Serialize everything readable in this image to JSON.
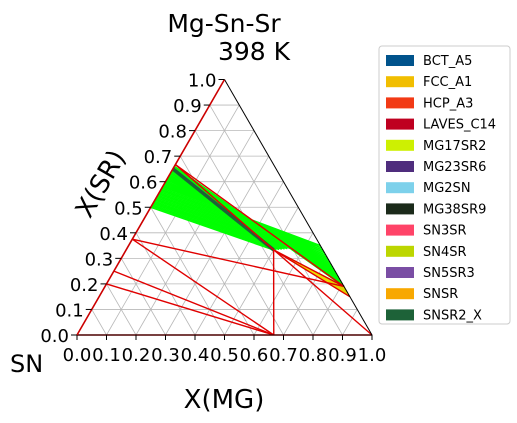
{
  "chart_data": {
    "type": "ternary",
    "title": "Mg-Sn-Sr",
    "subtitle": "398  K",
    "axes": {
      "bottom": {
        "label": "X(MG)",
        "ticks": [
          "0.0",
          "0.1",
          "0.2",
          "0.3",
          "0.4",
          "0.5",
          "0.6",
          "0.7",
          "0.8",
          "0.9",
          "1.0"
        ]
      },
      "left": {
        "label": "X(SR)",
        "ticks": [
          "0.0",
          "0.1",
          "0.2",
          "0.3",
          "0.4",
          "0.5",
          "0.6",
          "0.7",
          "0.8",
          "0.9",
          "1.0"
        ]
      },
      "corner_label": "SN"
    },
    "grid": true,
    "legend": {
      "placement": "right",
      "entries": [
        {
          "name": "BCT_A5",
          "color": "#00538c"
        },
        {
          "name": "FCC_A1",
          "color": "#f1be00"
        },
        {
          "name": "HCP_A3",
          "color": "#f23a15"
        },
        {
          "name": "LAVES_C14",
          "color": "#bf0020"
        },
        {
          "name": "MG17SR2",
          "color": "#cdf002"
        },
        {
          "name": "MG23SR6",
          "color": "#4f2d7d"
        },
        {
          "name": "MG2SN",
          "color": "#7dd1eb"
        },
        {
          "name": "MG38SR9",
          "color": "#1b2a1a"
        },
        {
          "name": "SN3SR",
          "color": "#ff4468"
        },
        {
          "name": "SN4SR",
          "color": "#bcd600"
        },
        {
          "name": "SN5SR3",
          "color": "#7a4ea4"
        },
        {
          "name": "SNSR",
          "color": "#f8a800"
        },
        {
          "name": "SNSR2_X",
          "color": "#1d6238"
        }
      ]
    },
    "tie_line_colors": {
      "red": "#e00000",
      "green": "#00ff00",
      "dark": "#1d6238",
      "olive": "#8a8a00"
    },
    "red_lines": [
      {
        "from": {
          "mg": 0.0,
          "sr": 0.667
        },
        "to": {
          "mg": 1.0,
          "sr": 0.0
        }
      },
      {
        "from": {
          "mg": 0.0,
          "sr": 0.667
        },
        "to": {
          "mg": 0.81,
          "sr": 0.19
        }
      },
      {
        "from": {
          "mg": 0.0,
          "sr": 0.375
        },
        "to": {
          "mg": 0.81,
          "sr": 0.19
        }
      },
      {
        "from": {
          "mg": 0.0,
          "sr": 0.375
        },
        "to": {
          "mg": 0.667,
          "sr": 0.0
        }
      },
      {
        "from": {
          "mg": 0.0,
          "sr": 0.25
        },
        "to": {
          "mg": 0.667,
          "sr": 0.0
        }
      },
      {
        "from": {
          "mg": 0.0,
          "sr": 0.2
        },
        "to": {
          "mg": 0.667,
          "sr": 0.0
        }
      },
      {
        "from": {
          "mg": 0.0,
          "sr": 0.0
        },
        "to": {
          "mg": 0.667,
          "sr": 0.0
        }
      },
      {
        "from": {
          "mg": 0.667,
          "sr": 0.0
        },
        "to": {
          "mg": 0.5,
          "sr": 0.333
        }
      },
      {
        "from": {
          "mg": 0.667,
          "sr": 0.0
        },
        "to": {
          "mg": 1.0,
          "sr": 0.0
        }
      },
      {
        "from": {
          "mg": 0.5,
          "sr": 0.333
        },
        "to": {
          "mg": 0.81,
          "sr": 0.19
        }
      },
      {
        "from": {
          "mg": 0.5,
          "sr": 0.333
        },
        "to": {
          "mg": 0.85,
          "sr": 0.15
        }
      }
    ],
    "green_fan": {
      "from": [
        {
          "mg": 0.0,
          "sr": 0.66
        },
        {
          "mg": 0.0,
          "sr": 0.5
        }
      ],
      "to": [
        {
          "mg": 0.81,
          "sr": 0.19
        },
        {
          "mg": 0.65,
          "sr": 0.35
        },
        {
          "mg": 0.5,
          "sr": 0.333
        }
      ]
    },
    "dark_line": {
      "from": {
        "mg": 0.0,
        "sr": 0.65
      },
      "to": {
        "mg": 0.5,
        "sr": 0.333
      }
    },
    "olive_band": [
      {
        "mg": 0.5,
        "sr": 0.333
      },
      {
        "mg": 0.81,
        "sr": 0.19
      },
      {
        "mg": 0.85,
        "sr": 0.15
      }
    ]
  }
}
